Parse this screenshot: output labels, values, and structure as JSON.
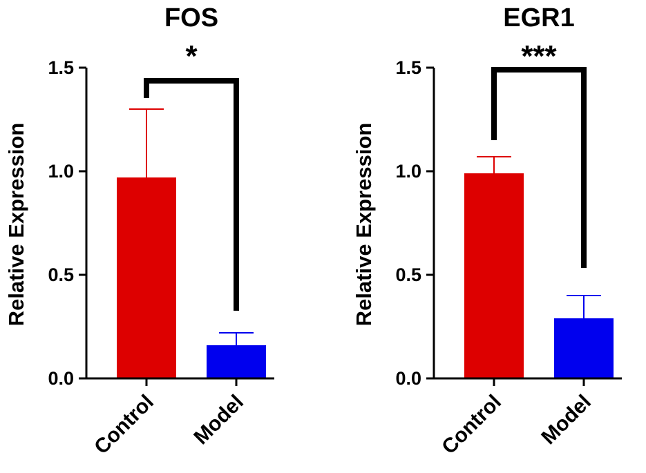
{
  "chart_data": [
    {
      "type": "bar",
      "title": "FOS",
      "xlabel": "",
      "ylabel": "Relative Expression",
      "ylim": [
        0,
        1.5
      ],
      "yticks": [
        0.0,
        0.5,
        1.0,
        1.5
      ],
      "ytick_labels": [
        "0.0",
        "0.5",
        "1.0",
        "1.5"
      ],
      "categories": [
        "Control",
        "Model"
      ],
      "values": [
        0.97,
        0.16
      ],
      "errors": [
        0.33,
        0.06
      ],
      "colors": [
        "#dd0000",
        "#0000ee"
      ],
      "significance": "*"
    },
    {
      "type": "bar",
      "title": "EGR1",
      "xlabel": "",
      "ylabel": "Relative Expression",
      "ylim": [
        0,
        1.5
      ],
      "yticks": [
        0.0,
        0.5,
        1.0,
        1.5
      ],
      "ytick_labels": [
        "0.0",
        "0.5",
        "1.0",
        "1.5"
      ],
      "categories": [
        "Control",
        "Model"
      ],
      "values": [
        0.99,
        0.29
      ],
      "errors": [
        0.08,
        0.11
      ],
      "colors": [
        "#dd0000",
        "#0000ee"
      ],
      "significance": "***"
    }
  ]
}
